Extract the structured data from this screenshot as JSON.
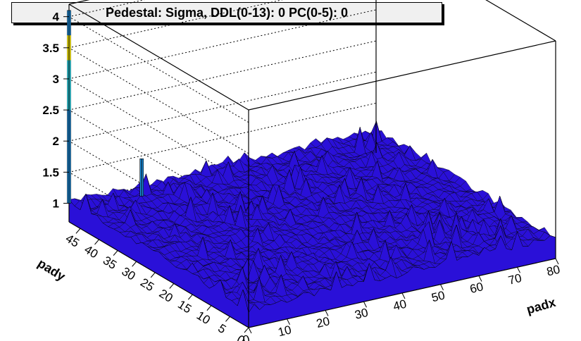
{
  "title": "Pedestal: Sigma, DDL(0-13): 0 PC(0-5): 0",
  "colors": {
    "surface_fill": "#2a10d8",
    "surface_mesh": "#000000",
    "spike_low": "#1a8fe0",
    "spike_mid": "#22c0d0",
    "spike_high": "#f0e000",
    "grid": "#000000",
    "title_bg": "#f0f0f0"
  },
  "chart_data": {
    "type": "surface",
    "title": "Pedestal: Sigma, DDL(0-13): 0 PC(0-5): 0",
    "xlabel": "padx",
    "ylabel": "pady",
    "zlabel": "",
    "xlim": [
      0,
      80
    ],
    "ylim": [
      0,
      48
    ],
    "zlim": [
      0.7,
      4.2
    ],
    "x_ticks": [
      0,
      10,
      20,
      30,
      40,
      50,
      60,
      70,
      80
    ],
    "y_ticks": [
      0,
      5,
      10,
      15,
      20,
      25,
      30,
      35,
      40,
      45
    ],
    "z_ticks": [
      1,
      1.5,
      2,
      2.5,
      3,
      3.5,
      4
    ],
    "baseline_sigma": 1.0,
    "spikes": [
      {
        "padx": 0,
        "pady": 48,
        "sigma": 4.1
      },
      {
        "padx": 16,
        "pady": 45,
        "sigma": 1.6
      }
    ],
    "grid": true,
    "legend": "none"
  }
}
